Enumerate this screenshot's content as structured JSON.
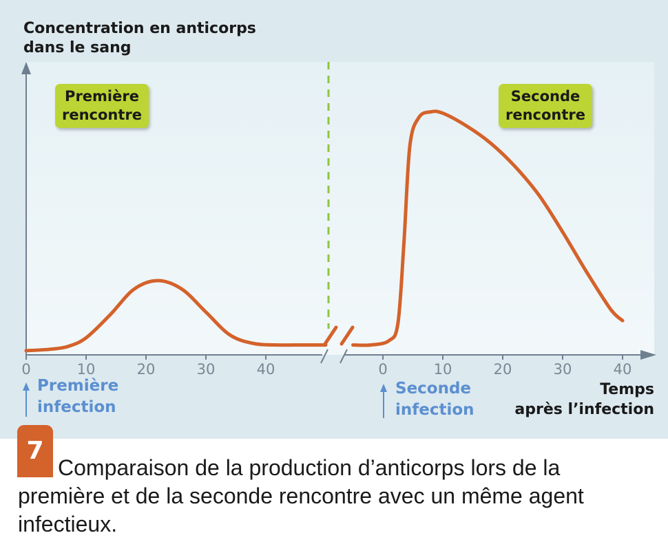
{
  "chart_data": {
    "type": "line",
    "ylabel_line1": "Concentration en anticorps",
    "ylabel_line2": "dans le sang",
    "xlabel_line1": "Temps",
    "xlabel_line2": "après l’infection",
    "x_ticks_first": [
      0,
      10,
      20,
      30,
      40
    ],
    "x_ticks_second": [
      0,
      10,
      20,
      30,
      40
    ],
    "xlim_first": [
      0,
      50
    ],
    "xlim_second": [
      -5,
      45
    ],
    "ylim": [
      0,
      100
    ],
    "series": [
      {
        "phase": "first",
        "x": [
          0,
          4,
          7,
          10,
          14,
          18,
          22,
          26,
          30,
          34,
          38,
          42,
          46,
          50
        ],
        "y": [
          0.5,
          1,
          2,
          5,
          13,
          22,
          25,
          22,
          14,
          6,
          3,
          2.5,
          2.5,
          2.5
        ]
      },
      {
        "phase": "second",
        "x": [
          -5,
          -2,
          1,
          2.5,
          3.5,
          4.5,
          6,
          8,
          10,
          14,
          18,
          22,
          26,
          30,
          34,
          38,
          40
        ],
        "y": [
          2.5,
          2.5,
          4,
          10,
          38,
          72,
          82,
          84,
          83.5,
          79,
          73,
          65,
          55,
          42,
          28,
          15,
          11
        ]
      }
    ],
    "grid": false,
    "colors": {
      "curve": "#d4622b",
      "divider": "#8dc63f",
      "axis": "#6e7f8f",
      "bubble": "#bcd534",
      "infection_arrow": "#5b8fd0",
      "background": "#dce9ef"
    }
  },
  "labels": {
    "first_encounter_line1": "Première",
    "first_encounter_line2": "rencontre",
    "second_encounter_line1": "Seconde",
    "second_encounter_line2": "rencontre",
    "first_infection_line1": "Première",
    "first_infection_line2": "infection",
    "second_infection_line1": "Seconde",
    "second_infection_line2": "infection"
  },
  "figure": {
    "number": "7",
    "caption": "Comparaison de la production d’anticorps lors de la première et de la seconde rencontre avec un même agent infectieux."
  }
}
